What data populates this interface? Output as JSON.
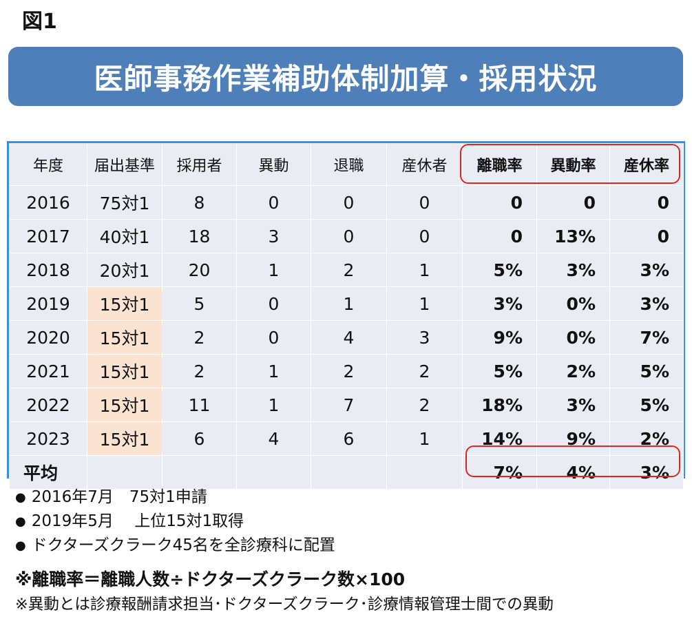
{
  "figure_label": "図1",
  "title": "医師事務作業補助体制加算・採用状況",
  "table": {
    "headers": [
      "年度",
      "届出基準",
      "採用者",
      "異動",
      "退職",
      "産休者",
      "離職率",
      "異動率",
      "産休率"
    ],
    "rows": [
      [
        "2016",
        "75対1",
        "8",
        "0",
        "0",
        "0",
        "0",
        "0",
        "0"
      ],
      [
        "2017",
        "40対1",
        "18",
        "3",
        "0",
        "0",
        "0",
        "13%",
        "0"
      ],
      [
        "2018",
        "20対1",
        "20",
        "1",
        "2",
        "1",
        "5%",
        "3%",
        "3%"
      ],
      [
        "2019",
        "15対1",
        "5",
        "0",
        "1",
        "1",
        "3%",
        "0%",
        "3%"
      ],
      [
        "2020",
        "15対1",
        "2",
        "0",
        "4",
        "3",
        "9%",
        "0%",
        "7%"
      ],
      [
        "2021",
        "15対1",
        "2",
        "1",
        "2",
        "2",
        "5%",
        "2%",
        "5%"
      ],
      [
        "2022",
        "15対1",
        "11",
        "1",
        "7",
        "2",
        "18%",
        "3%",
        "5%"
      ],
      [
        "2023",
        "15対1",
        "6",
        "4",
        "6",
        "1",
        "14%",
        "9%",
        "2%"
      ]
    ],
    "average": {
      "label": "平均",
      "values": [
        "7%",
        "4%",
        "3%"
      ]
    }
  },
  "notes": [
    "2016年7月　75対1申請",
    "2019年5月　 上位15対1取得",
    "ドクターズクラーク45名を全診療科に配置"
  ],
  "formula": "※離職率＝離職人数÷ドクターズクラーク数×100",
  "footnote": "※異動とは診療報酬請求担当･ドクターズクラーク･診療情報管理士間での異動",
  "colors": {
    "banner": "#4f7fb8",
    "table_border": "#3a8fd8",
    "highlight_box": "#e02424",
    "peach_cell": "#fbe3d2",
    "cell_bg": "#e9edf3"
  }
}
